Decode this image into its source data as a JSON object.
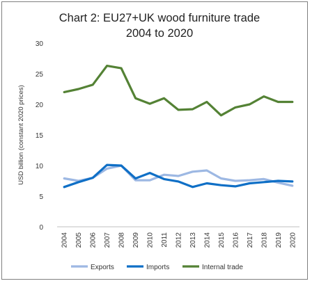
{
  "chart_data": {
    "type": "line",
    "title": "Chart 2: EU27+UK wood furniture trade",
    "subtitle": "2004 to 2020",
    "xlabel": "",
    "ylabel": "USD billion (constant 2020 prices)",
    "x": [
      "2004",
      "2005",
      "2006",
      "2007",
      "2008",
      "2009",
      "2010",
      "2011",
      "2012",
      "2013",
      "2014",
      "2015",
      "2016",
      "2017",
      "2018",
      "2019",
      "2020"
    ],
    "ylim": [
      0,
      30
    ],
    "yticks": [
      0,
      5,
      10,
      15,
      20,
      25,
      30
    ],
    "grid": false,
    "legend_position": "bottom",
    "series": [
      {
        "name": "Exports",
        "color": "#9db8e3",
        "values": [
          7.9,
          7.5,
          8.0,
          9.5,
          10.0,
          7.6,
          7.6,
          8.5,
          8.3,
          9.0,
          9.2,
          7.9,
          7.5,
          7.6,
          7.8,
          7.2,
          6.7
        ]
      },
      {
        "name": "Imports",
        "color": "#0f6fc6",
        "values": [
          6.5,
          7.3,
          8.0,
          10.1,
          10.0,
          7.9,
          8.8,
          7.8,
          7.4,
          6.5,
          7.1,
          6.8,
          6.6,
          7.1,
          7.3,
          7.5,
          7.4
        ]
      },
      {
        "name": "Internal trade",
        "color": "#548235",
        "values": [
          22.0,
          22.5,
          23.2,
          26.3,
          25.9,
          21.0,
          20.1,
          21.0,
          19.1,
          19.2,
          20.4,
          18.2,
          19.5,
          20.0,
          21.3,
          20.4,
          20.4
        ]
      }
    ]
  }
}
